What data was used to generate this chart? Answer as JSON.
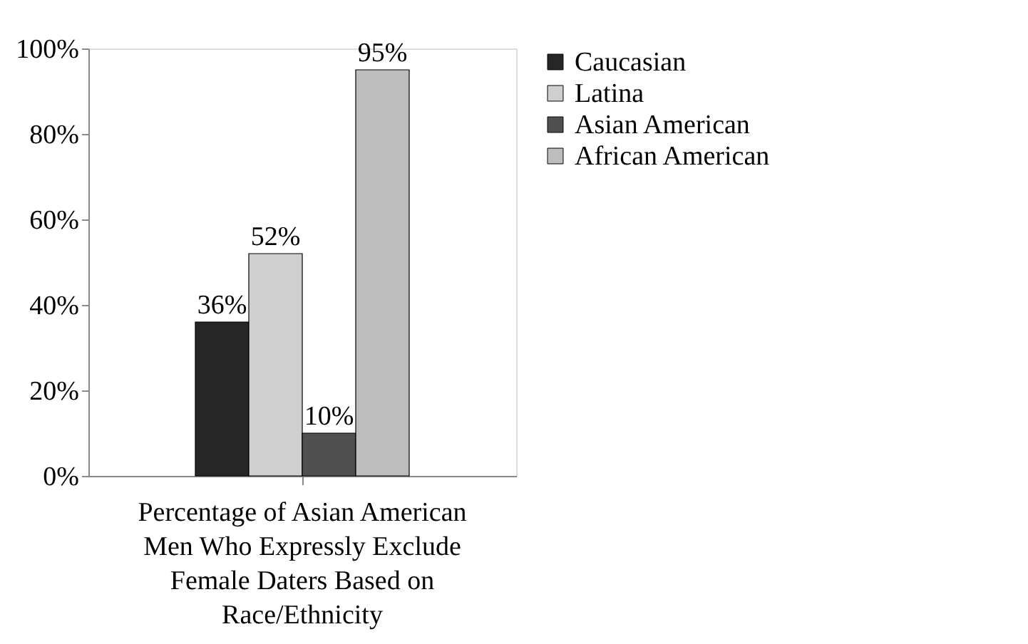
{
  "chart_data": {
    "type": "bar",
    "categories": [
      "Percentage of Asian American Men Who Expressly Exclude Female Daters Based on Race/Ethnicity"
    ],
    "series": [
      {
        "name": "Caucasian",
        "color": "#262626",
        "values": [
          36
        ]
      },
      {
        "name": "Latina",
        "color": "#cfcfcf",
        "values": [
          52
        ]
      },
      {
        "name": "Asian American",
        "color": "#505050",
        "values": [
          10
        ]
      },
      {
        "name": "African American",
        "color": "#bdbdbd",
        "values": [
          95
        ]
      }
    ],
    "ylim": [
      0,
      100
    ],
    "yticks": [
      {
        "value": 0,
        "label": "0%"
      },
      {
        "value": 20,
        "label": "20%"
      },
      {
        "value": 40,
        "label": "40%"
      },
      {
        "value": 60,
        "label": "60%"
      },
      {
        "value": 80,
        "label": "80%"
      },
      {
        "value": 100,
        "label": "100%"
      }
    ],
    "value_labels": [
      [
        "36%"
      ],
      [
        "52%"
      ],
      [
        "10%"
      ],
      [
        "95%"
      ]
    ],
    "grid": false,
    "legend": "right"
  }
}
